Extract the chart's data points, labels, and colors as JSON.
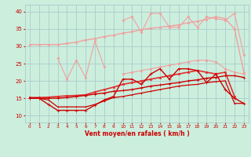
{
  "x": [
    0,
    1,
    2,
    3,
    4,
    5,
    6,
    7,
    8,
    9,
    10,
    11,
    12,
    13,
    14,
    15,
    16,
    17,
    18,
    19,
    20,
    21,
    22,
    23
  ],
  "series": [
    {
      "name": "smooth_upper_light",
      "color": "#f0a0a0",
      "lw": 1.0,
      "marker": "s",
      "markersize": 1.5,
      "y": [
        30.5,
        30.5,
        30.5,
        30.5,
        30.8,
        31.2,
        31.8,
        32.2,
        32.8,
        33.2,
        33.8,
        34.2,
        34.8,
        35.2,
        35.5,
        35.8,
        36.2,
        36.8,
        37.2,
        37.8,
        38.5,
        38.0,
        35.0,
        22.5
      ]
    },
    {
      "name": "jagged_upper_light",
      "color": "#f0a0a0",
      "lw": 0.8,
      "marker": "D",
      "markersize": 1.5,
      "y": [
        null,
        null,
        null,
        26.5,
        20.5,
        26.0,
        21.0,
        31.5,
        24.0,
        null,
        37.5,
        38.5,
        34.0,
        39.5,
        39.5,
        35.5,
        35.5,
        38.5,
        35.5,
        38.5,
        38.0,
        37.5,
        39.5,
        27.5
      ]
    },
    {
      "name": "smooth_mid_light",
      "color": "#f0a0a0",
      "lw": 0.8,
      "marker": "s",
      "markersize": 1.5,
      "y": [
        null,
        null,
        null,
        null,
        null,
        null,
        null,
        null,
        null,
        null,
        22.0,
        22.5,
        23.0,
        23.5,
        24.0,
        24.5,
        25.0,
        25.5,
        26.0,
        26.0,
        25.5,
        23.5,
        22.5,
        22.0
      ]
    },
    {
      "name": "smooth_upper_dark",
      "color": "#e03030",
      "lw": 1.2,
      "marker": "s",
      "markersize": 1.5,
      "y": [
        15.2,
        15.2,
        15.3,
        15.5,
        15.7,
        15.8,
        16.0,
        16.8,
        17.5,
        18.2,
        19.0,
        19.5,
        20.0,
        20.5,
        21.0,
        21.5,
        22.0,
        22.5,
        23.0,
        22.5,
        22.0,
        22.5,
        15.5,
        null
      ]
    },
    {
      "name": "jagged_mid_dark",
      "color": "#cc0000",
      "lw": 1.0,
      "marker": "+",
      "markersize": 3.0,
      "y": [
        15.0,
        15.0,
        13.2,
        11.5,
        11.5,
        11.5,
        11.5,
        13.0,
        14.5,
        15.5,
        20.5,
        20.5,
        19.0,
        22.0,
        23.5,
        20.5,
        23.5,
        23.5,
        23.0,
        19.5,
        22.0,
        17.5,
        15.0,
        13.5
      ]
    },
    {
      "name": "smooth_lower_dark1",
      "color": "#cc0000",
      "lw": 1.0,
      "marker": "+",
      "markersize": 2.5,
      "y": [
        15.0,
        15.0,
        15.0,
        15.0,
        15.2,
        15.5,
        15.8,
        16.2,
        16.5,
        17.0,
        17.2,
        17.5,
        18.0,
        18.5,
        18.8,
        19.2,
        19.5,
        20.0,
        20.3,
        20.8,
        21.0,
        21.5,
        21.5,
        21.0
      ]
    },
    {
      "name": "smooth_lower_dark2",
      "color": "#cc0000",
      "lw": 0.9,
      "marker": "+",
      "markersize": 2.0,
      "y": [
        15.0,
        15.0,
        14.5,
        12.5,
        12.5,
        12.5,
        12.5,
        13.2,
        14.2,
        15.2,
        15.5,
        16.0,
        16.5,
        17.0,
        17.5,
        18.0,
        18.5,
        18.8,
        19.0,
        19.5,
        19.8,
        20.0,
        13.5,
        13.5
      ]
    }
  ],
  "xlabel": "Vent moyen/en rafales ( km/h )",
  "xlabel_color": "#cc0000",
  "bg_color": "#cceedd",
  "grid_color": "#aacccc",
  "tick_color": "#cc0000",
  "xlim": [
    -0.5,
    23.5
  ],
  "ylim": [
    8,
    42
  ],
  "yticks": [
    10,
    15,
    20,
    25,
    30,
    35,
    40
  ],
  "xticks": [
    0,
    1,
    2,
    3,
    4,
    5,
    6,
    7,
    8,
    9,
    10,
    11,
    12,
    13,
    14,
    15,
    16,
    17,
    18,
    19,
    20,
    21,
    22,
    23
  ]
}
